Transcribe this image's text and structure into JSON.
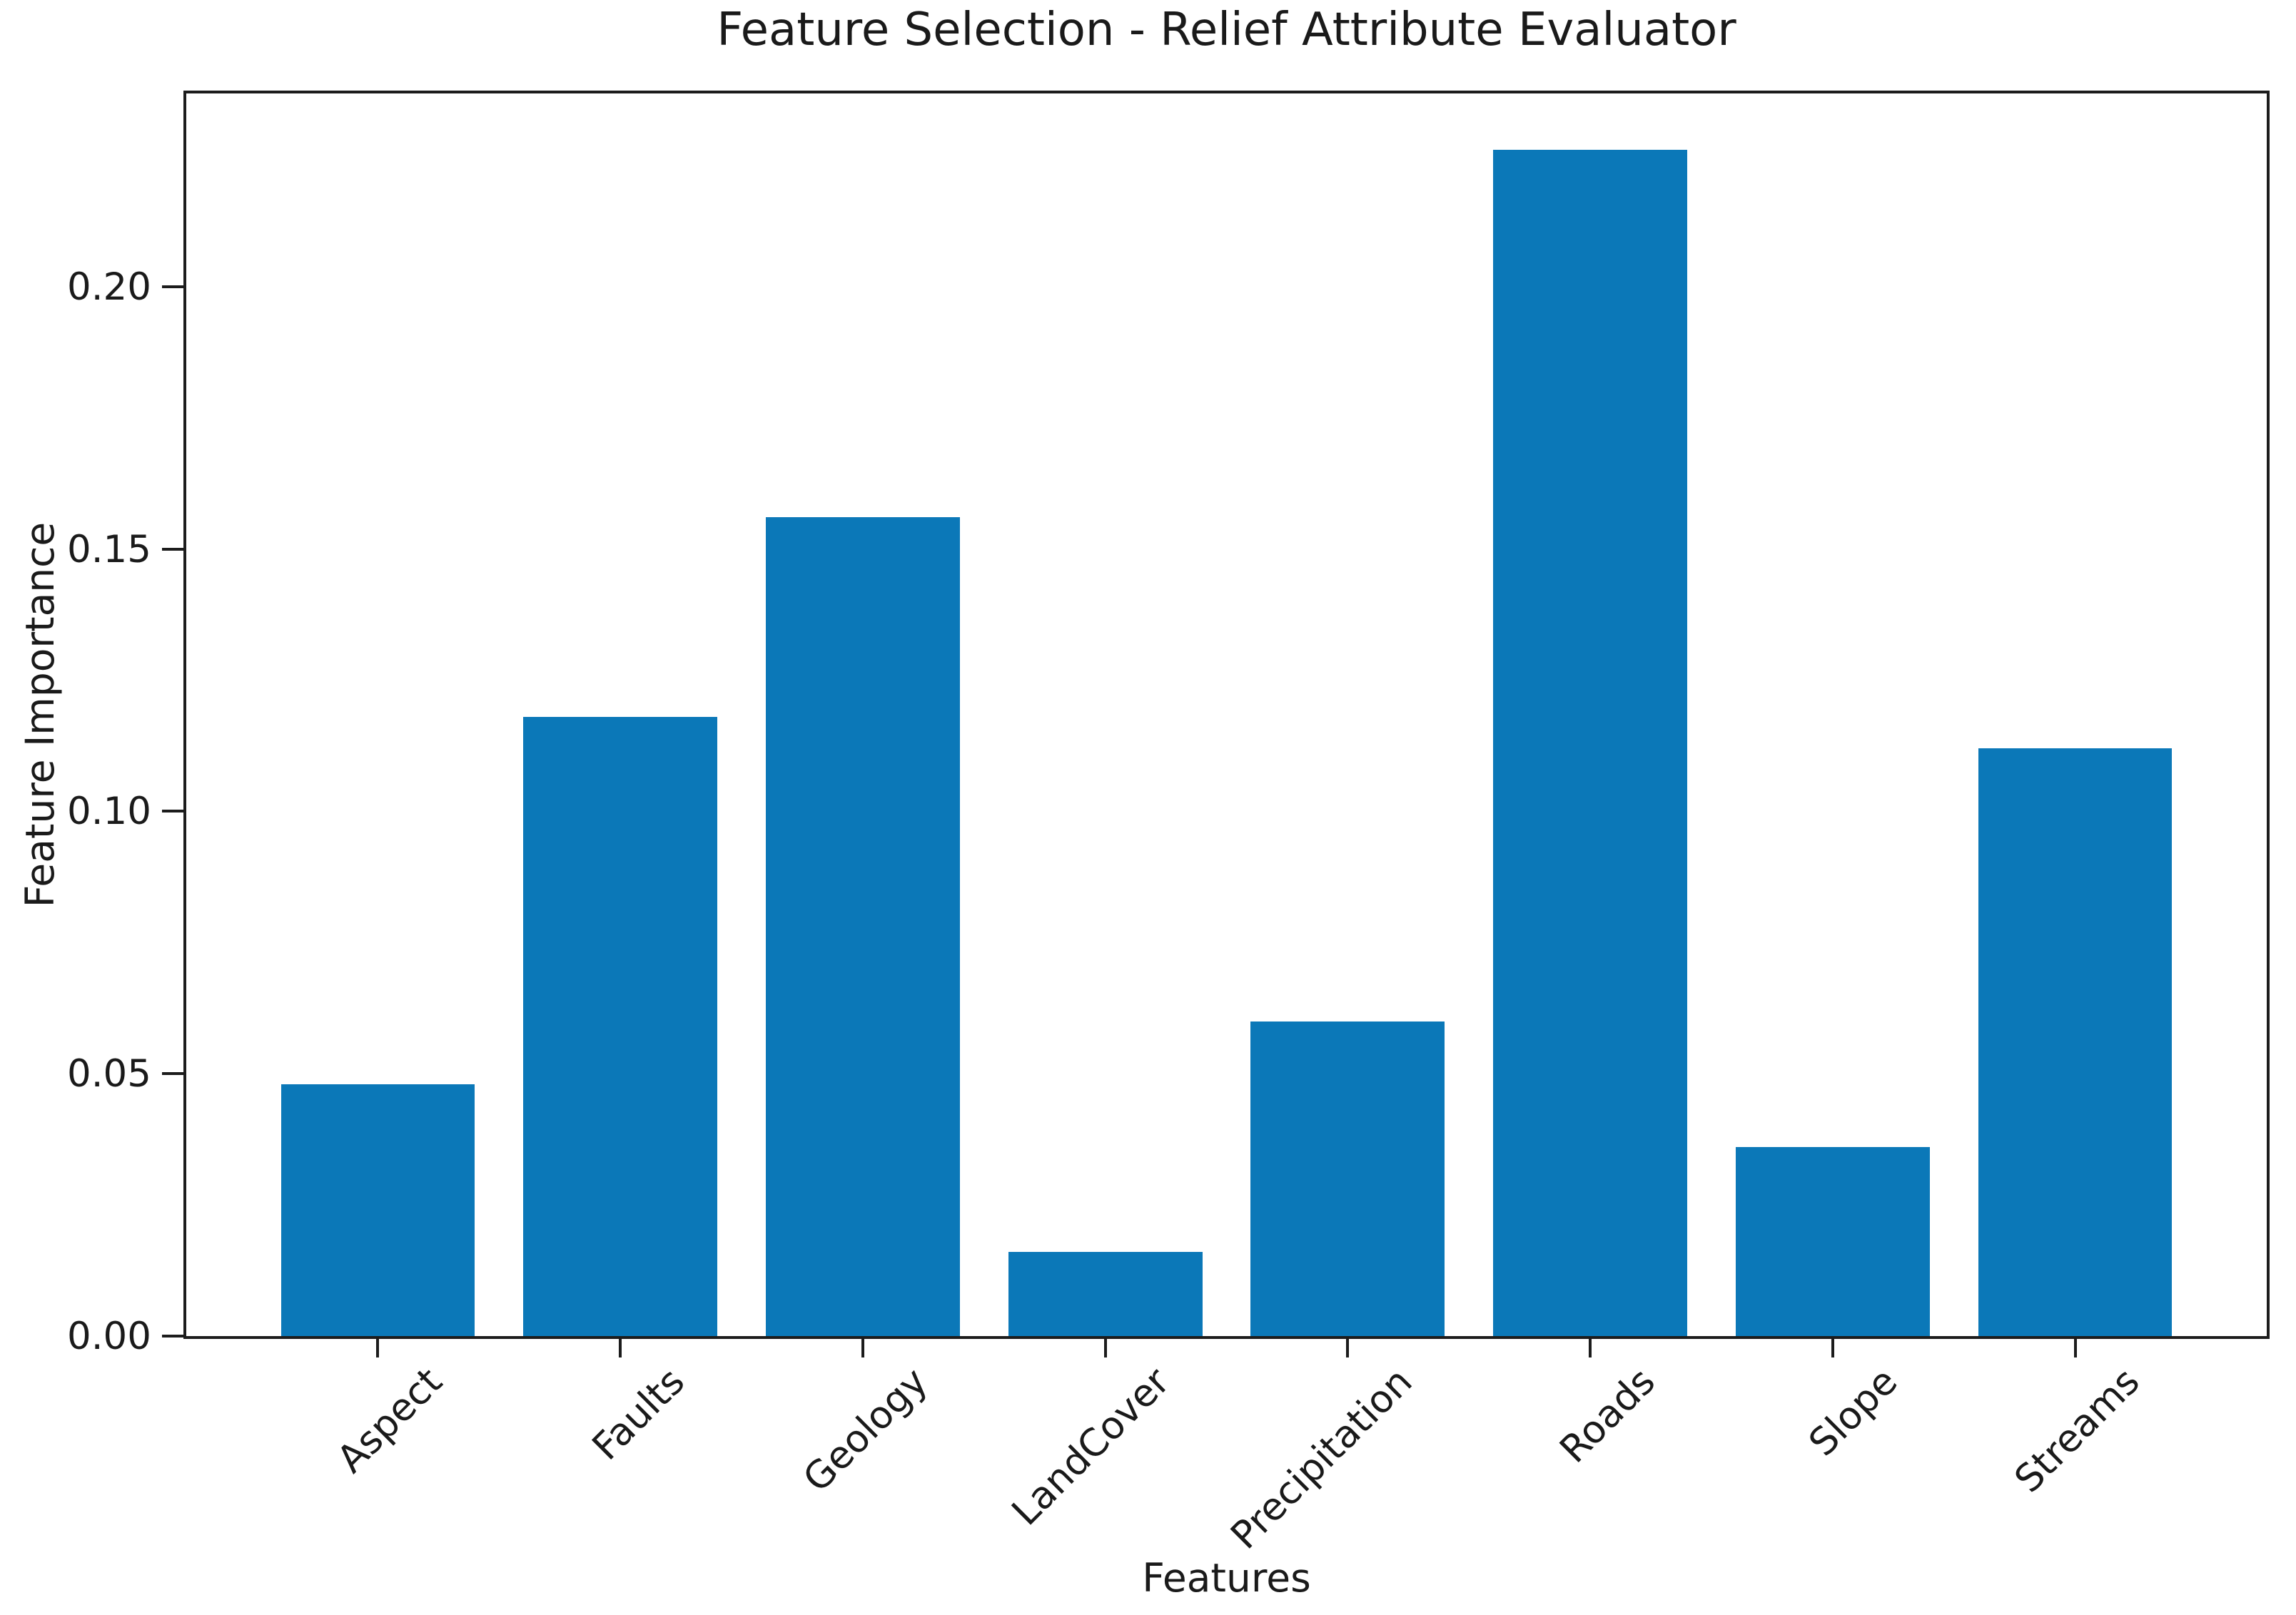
{
  "chart_data": {
    "type": "bar",
    "title": "Feature Selection - Relief Attribute Evaluator",
    "xlabel": "Features",
    "ylabel": "Feature Importance",
    "categories": [
      "Aspect",
      "Faults",
      "Geology",
      "LandCover",
      "Precipitation",
      "Roads",
      "Slope",
      "Streams"
    ],
    "values": [
      0.048,
      0.118,
      0.156,
      0.016,
      0.06,
      0.226,
      0.036,
      0.112
    ],
    "yticks": [
      "0.00",
      "0.05",
      "0.10",
      "0.15",
      "0.20"
    ],
    "ytick_values": [
      0.0,
      0.05,
      0.1,
      0.15,
      0.2
    ],
    "ylim": [
      0,
      0.2368
    ],
    "bar_color": "#0b78b8",
    "axis_color": "#1c1c1c",
    "text_color": "#1a1a1a",
    "background_color": "#ffffff",
    "grid": "off",
    "legend": "none",
    "bar_width_fraction": 0.8,
    "x_margin_units": 0.79,
    "x_label_rotation_deg": 45
  }
}
